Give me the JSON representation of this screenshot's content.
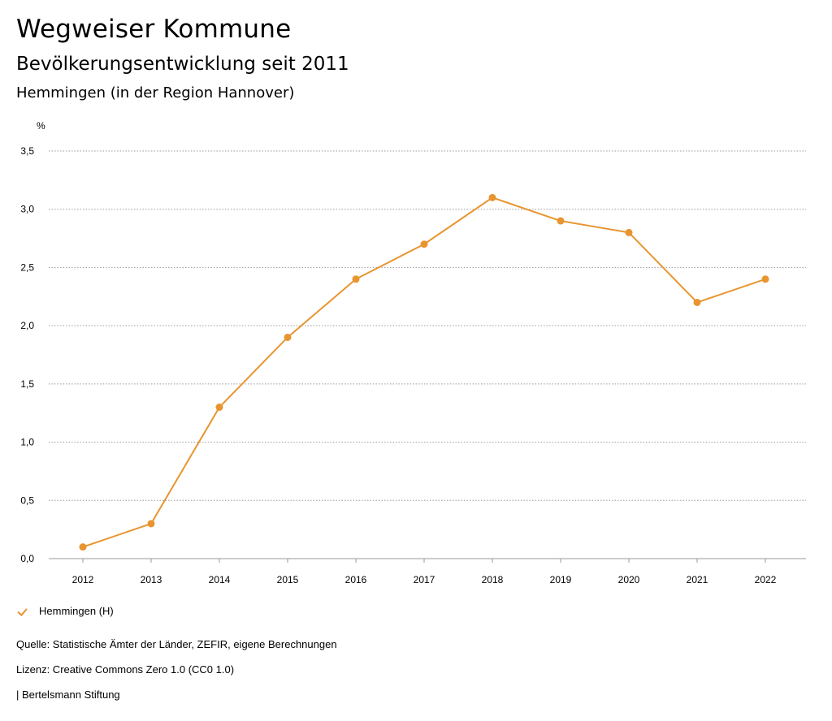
{
  "header": {
    "title": "Wegweiser Kommune",
    "subtitle": "Bevölkerungsentwicklung seit 2011",
    "region": "Hemmingen (in der Region Hannover)"
  },
  "chart_data": {
    "type": "line",
    "unit": "%",
    "x": [
      "2012",
      "2013",
      "2014",
      "2015",
      "2016",
      "2017",
      "2018",
      "2019",
      "2020",
      "2021",
      "2022"
    ],
    "series": [
      {
        "name": "Hemmingen (H)",
        "color": "#e8952f",
        "values": [
          0.1,
          0.3,
          1.3,
          1.9,
          2.4,
          2.7,
          3.1,
          2.9,
          2.8,
          2.2,
          2.4
        ]
      }
    ],
    "yticks": [
      0,
      0.5,
      1.0,
      1.5,
      2.0,
      2.5,
      3.0,
      3.5
    ],
    "ytick_labels": [
      "0,0",
      "0,5",
      "1,0",
      "1,5",
      "2,0",
      "2,5",
      "3,0",
      "3,5"
    ],
    "ylim": [
      0,
      3.5
    ],
    "grid": true,
    "legend_position": "bottom-left"
  },
  "legend": {
    "label": "Hemmingen (H)"
  },
  "footer": {
    "source": "Quelle: Statistische Ämter der Länder, ZEFIR, eigene Berechnungen",
    "license": "Lizenz: Creative Commons Zero 1.0 (CC0 1.0)",
    "publisher": "| Bertelsmann Stiftung"
  }
}
